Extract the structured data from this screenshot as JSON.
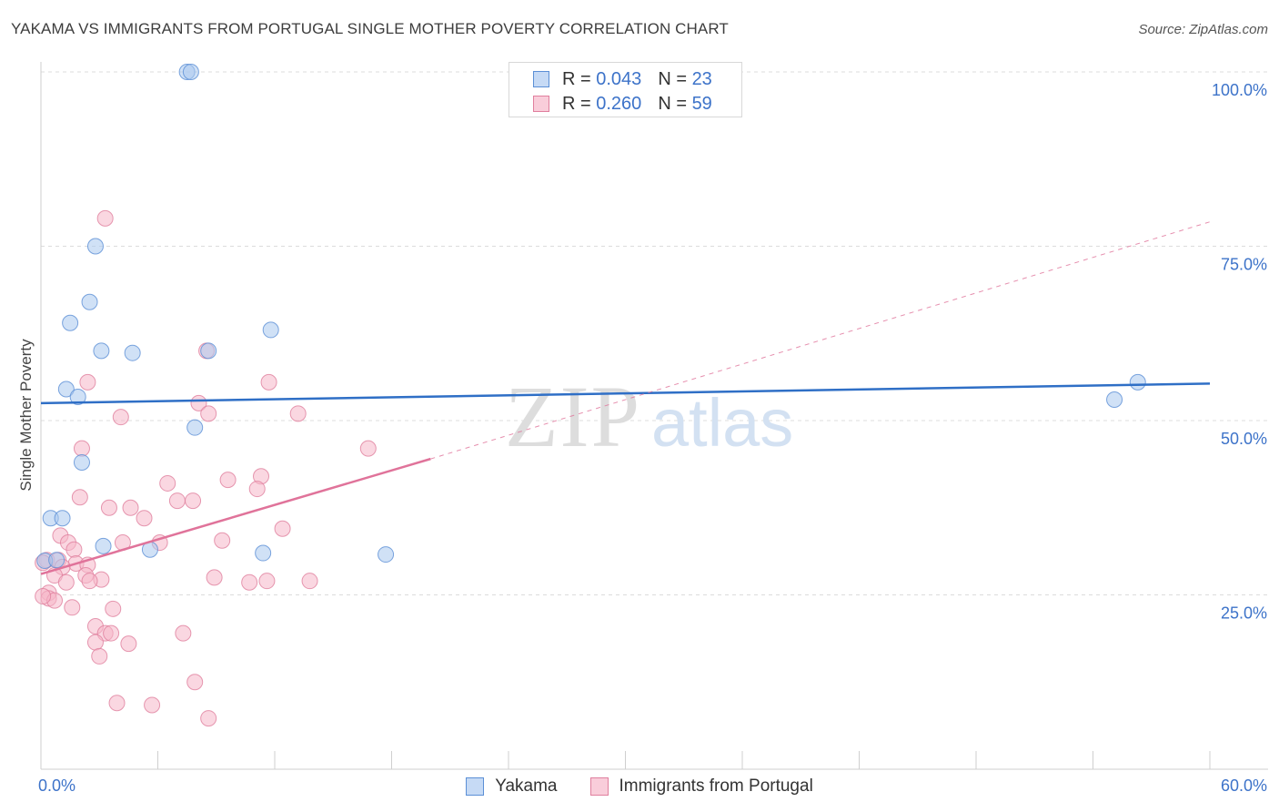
{
  "title": "YAKAMA VS IMMIGRANTS FROM PORTUGAL SINGLE MOTHER POVERTY CORRELATION CHART",
  "source": "Source: ZipAtlas.com",
  "watermark": {
    "zip": "ZIP",
    "atlas": "atlas"
  },
  "legend": {
    "r_label": "R =",
    "n_label": "N =",
    "rows": [
      {
        "r": "0.043",
        "n": "23"
      },
      {
        "r": "0.260",
        "n": "59"
      }
    ]
  },
  "colors": {
    "blue_fill": "#aac8ef",
    "blue_stroke": "#5b8fd6",
    "blue_line": "#2f6fc6",
    "pink_fill": "#f5b6c9",
    "pink_stroke": "#e07f9e",
    "pink_line": "#e0739a",
    "tick_text": "#3d73c9",
    "grid": "#dcdcdc"
  },
  "chart_data": {
    "type": "scatter",
    "title": "YAKAMA VS IMMIGRANTS FROM PORTUGAL SINGLE MOTHER POVERTY CORRELATION CHART",
    "xlabel": "",
    "ylabel": "Single Mother Poverty",
    "xlim": [
      0,
      60
    ],
    "ylim": [
      0,
      100
    ],
    "x_tick_labels": [
      "0.0%",
      "60.0%"
    ],
    "y_tick_labels": [
      "100.0%",
      "75.0%",
      "50.0%",
      "25.0%"
    ],
    "y_ticks": [
      100,
      75,
      50,
      25
    ],
    "grid": true,
    "legend_position": "top-center",
    "series": [
      {
        "name": "Yakama",
        "color": "#aac8ef",
        "r": 0.043,
        "n": 23,
        "trend": {
          "x": [
            0,
            60
          ],
          "y": [
            52.5,
            55.3
          ],
          "dashed_extension": false
        },
        "points": [
          [
            7.5,
            100
          ],
          [
            7.7,
            100
          ],
          [
            2.8,
            75
          ],
          [
            2.5,
            67
          ],
          [
            1.5,
            64
          ],
          [
            3.1,
            60
          ],
          [
            4.7,
            59.7
          ],
          [
            8.6,
            60
          ],
          [
            11.8,
            63
          ],
          [
            1.3,
            54.5
          ],
          [
            1.9,
            53.4
          ],
          [
            7.9,
            49
          ],
          [
            2.1,
            44
          ],
          [
            0.5,
            36
          ],
          [
            1.1,
            36
          ],
          [
            3.2,
            32
          ],
          [
            5.6,
            31.5
          ],
          [
            11.4,
            31
          ],
          [
            17.7,
            30.8
          ],
          [
            0.2,
            29.9
          ],
          [
            0.8,
            30
          ],
          [
            55.1,
            53
          ],
          [
            56.3,
            55.5
          ]
        ]
      },
      {
        "name": "Immigrants from Portugal",
        "color": "#f5b6c9",
        "r": 0.26,
        "n": 59,
        "trend": {
          "x": [
            0,
            20
          ],
          "y": [
            28,
            44.5
          ],
          "dashed_to": [
            60,
            78.5
          ]
        },
        "points": [
          [
            3.3,
            79
          ],
          [
            2.4,
            55.5
          ],
          [
            11.7,
            55.5
          ],
          [
            8.5,
            60
          ],
          [
            8.1,
            52.5
          ],
          [
            4.1,
            50.5
          ],
          [
            8.6,
            51
          ],
          [
            13.2,
            51
          ],
          [
            2.1,
            46
          ],
          [
            16.8,
            46
          ],
          [
            6.5,
            41
          ],
          [
            9.6,
            41.5
          ],
          [
            11.3,
            42
          ],
          [
            11.1,
            40.2
          ],
          [
            2.0,
            39
          ],
          [
            7.0,
            38.5
          ],
          [
            7.8,
            38.5
          ],
          [
            3.5,
            37.5
          ],
          [
            4.6,
            37.5
          ],
          [
            5.3,
            36
          ],
          [
            12.4,
            34.5
          ],
          [
            1.0,
            33.5
          ],
          [
            1.4,
            32.5
          ],
          [
            4.2,
            32.5
          ],
          [
            6.1,
            32.5
          ],
          [
            9.3,
            32.8
          ],
          [
            1.7,
            31.5
          ],
          [
            0.3,
            30
          ],
          [
            0.9,
            30
          ],
          [
            1.8,
            29.5
          ],
          [
            2.4,
            29.3
          ],
          [
            1.1,
            29
          ],
          [
            0.7,
            27.8
          ],
          [
            2.3,
            27.8
          ],
          [
            3.1,
            27.2
          ],
          [
            2.5,
            27
          ],
          [
            1.3,
            26.8
          ],
          [
            8.9,
            27.5
          ],
          [
            10.7,
            26.8
          ],
          [
            11.6,
            27
          ],
          [
            13.8,
            27
          ],
          [
            0.4,
            25.3
          ],
          [
            0.4,
            24.5
          ],
          [
            0.7,
            24.2
          ],
          [
            3.7,
            23
          ],
          [
            1.6,
            23.2
          ],
          [
            2.8,
            20.5
          ],
          [
            3.3,
            19.5
          ],
          [
            3.6,
            19.5
          ],
          [
            7.3,
            19.5
          ],
          [
            2.8,
            18.2
          ],
          [
            4.5,
            18
          ],
          [
            3.0,
            16.2
          ],
          [
            7.9,
            12.5
          ],
          [
            3.9,
            9.5
          ],
          [
            5.7,
            9.2
          ],
          [
            8.6,
            7.3
          ],
          [
            0.1,
            29.6
          ],
          [
            0.1,
            24.8
          ]
        ]
      }
    ]
  }
}
